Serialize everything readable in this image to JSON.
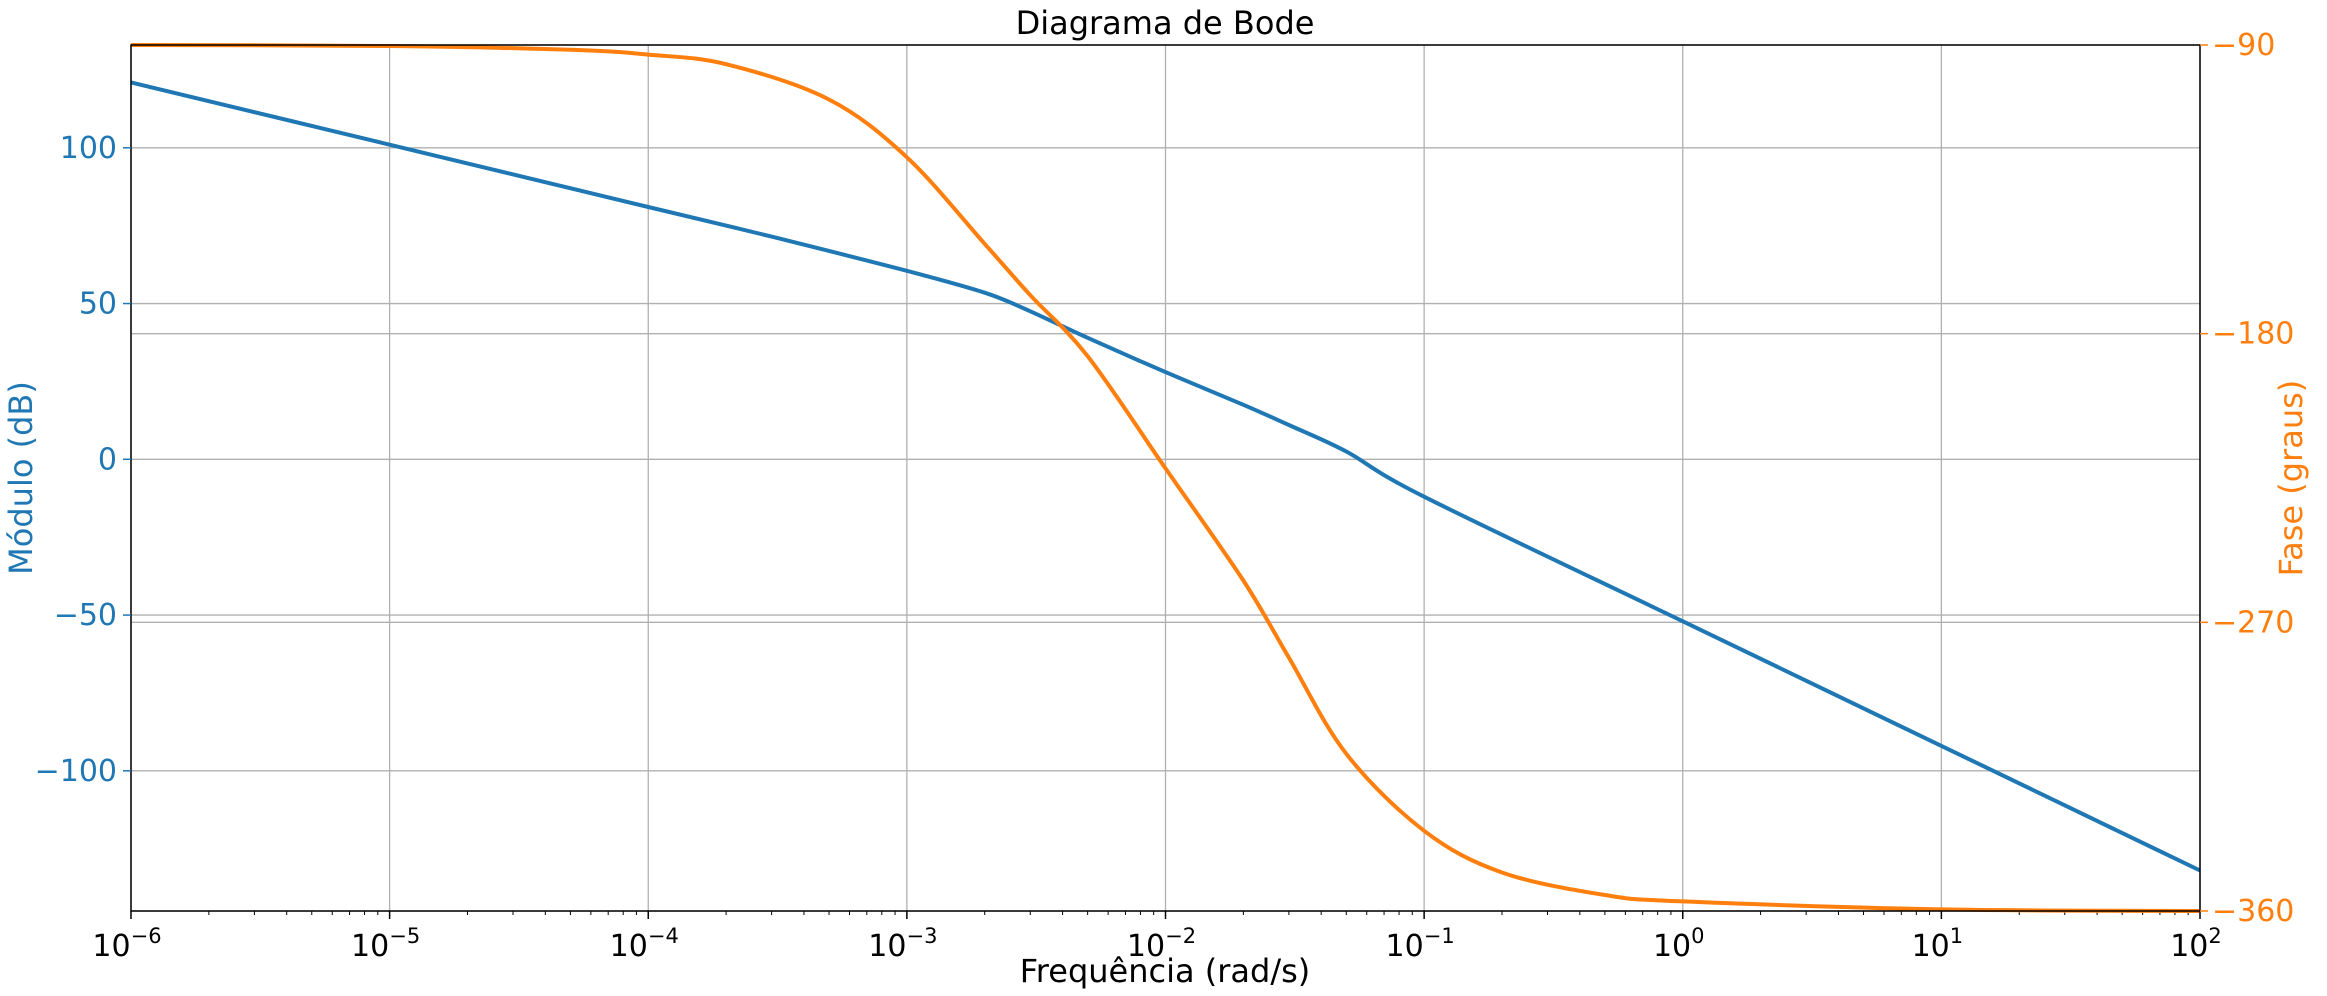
{
  "chart_data": {
    "type": "line",
    "title": "Diagrama de Bode",
    "xlabel": "Frequência (rad/s)",
    "ylabel_left": "Módulo (dB)",
    "ylabel_right": "Fase (graus)",
    "x_scale": "log",
    "xlim": [
      1e-06,
      100
    ],
    "ylim_left": [
      -145,
      133
    ],
    "ylim_right": [
      -360,
      -90
    ],
    "grid": true,
    "x_ticks": [
      {
        "value": 1e-06,
        "base": "10",
        "exp": "−6"
      },
      {
        "value": 1e-05,
        "base": "10",
        "exp": "−5"
      },
      {
        "value": 0.0001,
        "base": "10",
        "exp": "−4"
      },
      {
        "value": 0.001,
        "base": "10",
        "exp": "−3"
      },
      {
        "value": 0.01,
        "base": "10",
        "exp": "−2"
      },
      {
        "value": 0.1,
        "base": "10",
        "exp": "−1"
      },
      {
        "value": 1,
        "base": "10",
        "exp": "0"
      },
      {
        "value": 10,
        "base": "10",
        "exp": "1"
      },
      {
        "value": 100,
        "base": "10",
        "exp": "2"
      }
    ],
    "y_ticks_left": [
      {
        "value": 100,
        "label": "100"
      },
      {
        "value": 50,
        "label": "50"
      },
      {
        "value": 0,
        "label": "0"
      },
      {
        "value": -50,
        "label": "−50"
      },
      {
        "value": -100,
        "label": "−100"
      }
    ],
    "y_ticks_right": [
      {
        "value": -90,
        "label": "−90"
      },
      {
        "value": -180,
        "label": "−180"
      },
      {
        "value": -270,
        "label": "−270"
      },
      {
        "value": -360,
        "label": "−360"
      }
    ],
    "colors": {
      "magnitude": "#1f77b4",
      "phase": "#ff7f0e",
      "grid": "#b0b0b0",
      "axes": "#000000"
    },
    "series": [
      {
        "axis": "left",
        "x": [
          1e-06,
          1e-05,
          0.0001,
          0.0003,
          0.001,
          0.002,
          0.003,
          0.005,
          0.01,
          0.02,
          0.03,
          0.05,
          0.1,
          1,
          10,
          100
        ],
        "y": [
          121,
          101,
          81,
          71.5,
          60.5,
          53.5,
          47.5,
          39,
          28,
          17.5,
          11,
          2.5,
          -12,
          -52,
          -92,
          -132
        ]
      },
      {
        "axis": "right",
        "x": [
          1e-06,
          1e-05,
          5e-05,
          0.0001,
          0.0002,
          0.0005,
          0.001,
          0.002,
          0.003,
          0.005,
          0.01,
          0.02,
          0.03,
          0.05,
          0.1,
          0.2,
          0.5,
          1,
          10,
          100
        ],
        "y": [
          -90,
          -90.3,
          -91.5,
          -93,
          -96,
          -107,
          -125,
          -152,
          -168,
          -187,
          -222,
          -257,
          -281,
          -311,
          -335,
          -348,
          -355,
          -357,
          -359.5,
          -360
        ]
      }
    ]
  }
}
